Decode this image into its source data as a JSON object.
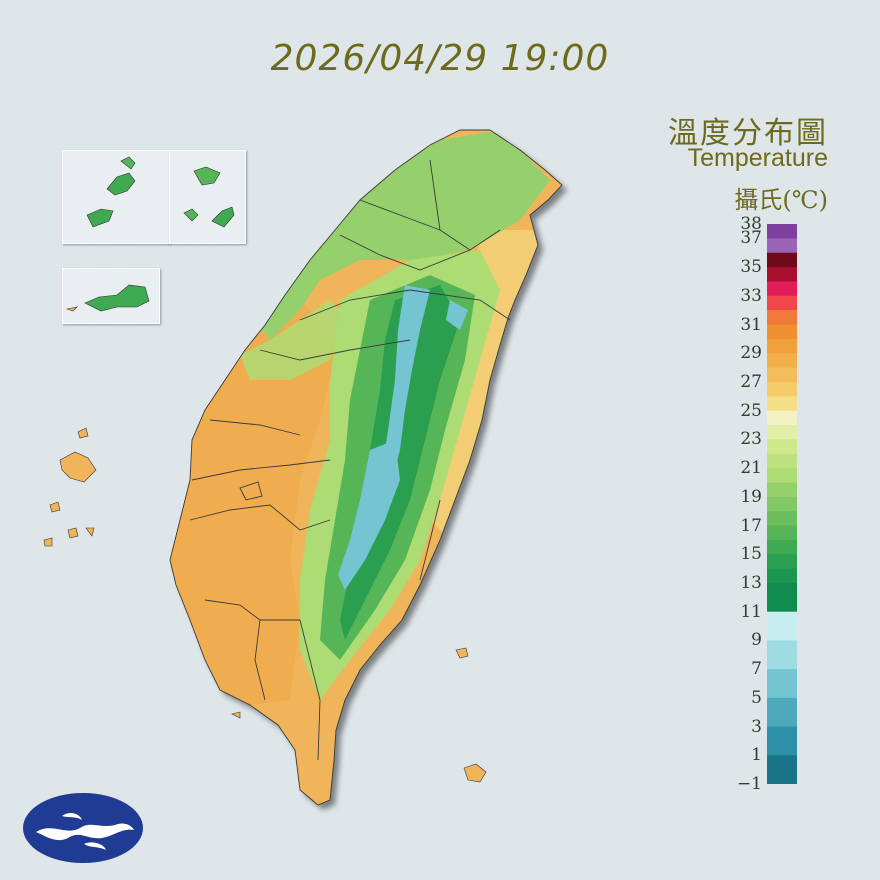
{
  "timestamp": "2026/04/29 19:00",
  "legend": {
    "title_zh": "溫度分布圖",
    "title_en": "Temperature",
    "unit": "攝氏(℃)",
    "tick_labels": [
      "38",
      "37",
      "35",
      "33",
      "31",
      "29",
      "27",
      "25",
      "23",
      "21",
      "19",
      "17",
      "15",
      "13",
      "11",
      "9",
      "7",
      "5",
      "3",
      "1",
      "−1"
    ],
    "range": [
      -1,
      38
    ],
    "colors": [
      {
        "min": 37,
        "color": "#7e3f9e"
      },
      {
        "min": 36,
        "color": "#9a64b5"
      },
      {
        "min": 35,
        "color": "#6f0a1a"
      },
      {
        "min": 34,
        "color": "#a8102e"
      },
      {
        "min": 33,
        "color": "#e41c5a"
      },
      {
        "min": 32,
        "color": "#f0484a"
      },
      {
        "min": 31,
        "color": "#f07a3a"
      },
      {
        "min": 30,
        "color": "#f0902e"
      },
      {
        "min": 29,
        "color": "#f1a03c"
      },
      {
        "min": 28,
        "color": "#f2b04a"
      },
      {
        "min": 27,
        "color": "#f3bd5a"
      },
      {
        "min": 26,
        "color": "#f4cd6a"
      },
      {
        "min": 25,
        "color": "#f3de86"
      },
      {
        "min": 24,
        "color": "#f4f1c6"
      },
      {
        "min": 23,
        "color": "#e2efa6"
      },
      {
        "min": 22,
        "color": "#d0e88c"
      },
      {
        "min": 21,
        "color": "#bfe07e"
      },
      {
        "min": 20,
        "color": "#addb74"
      },
      {
        "min": 19,
        "color": "#96d06c"
      },
      {
        "min": 18,
        "color": "#82c866"
      },
      {
        "min": 17,
        "color": "#6cbf5c"
      },
      {
        "min": 16,
        "color": "#56b556"
      },
      {
        "min": 15,
        "color": "#40aa52"
      },
      {
        "min": 14,
        "color": "#2b9f50"
      },
      {
        "min": 13,
        "color": "#1c9650"
      },
      {
        "min": 11,
        "color": "#0f8c4e"
      },
      {
        "min": 9,
        "color": "#c6eef0"
      },
      {
        "min": 7,
        "color": "#9fdbe3"
      },
      {
        "min": 5,
        "color": "#74c4d2"
      },
      {
        "min": 3,
        "color": "#4ea9bd"
      },
      {
        "min": 1,
        "color": "#2e90a6"
      },
      {
        "min": -1,
        "color": "#1b7488"
      }
    ]
  },
  "map_colors": {
    "warm_plain": "#f0b55a",
    "lowland": "#f3cd74",
    "hill": "#addb74",
    "mid_mountain": "#56b556",
    "high_mountain": "#2b9f50",
    "peak": "#74c4d2",
    "north": "#96d06c",
    "border": "#3a3a3a"
  },
  "logo": {
    "name": "cwa-logo",
    "color": "#1f3b93"
  }
}
